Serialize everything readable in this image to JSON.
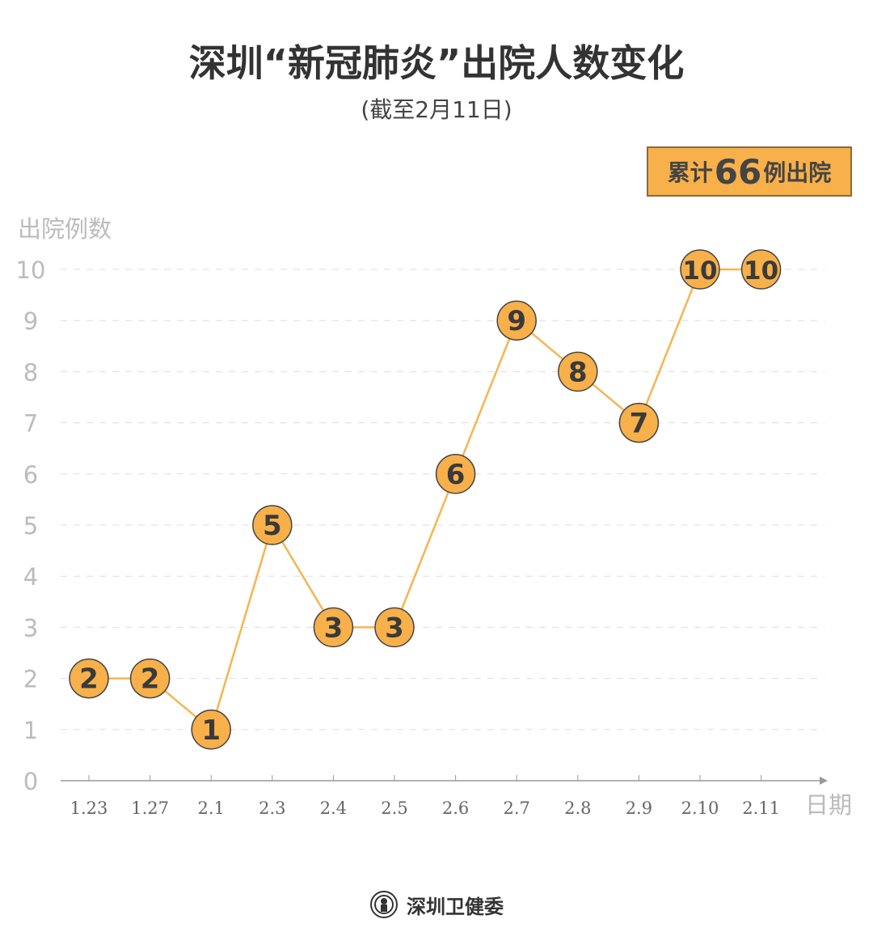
{
  "title": "深圳“新冠肺炎”出院人数变化",
  "subtitle": "(截至2月11日)",
  "badge": {
    "prefix": "累计",
    "number": "66",
    "suffix": "例出院"
  },
  "footer": {
    "source": "深圳卫健委",
    "logo": "shenzhen-health-commission-emblem"
  },
  "colors": {
    "marker_fill": "#f7b04a",
    "line": "#f5b550",
    "marker_stroke": "#444444",
    "grid": "#dddddd",
    "axis": "#999999"
  },
  "chart_data": {
    "type": "line",
    "title": "深圳“新冠肺炎”出院人数变化",
    "subtitle": "(截至2月11日)",
    "xlabel": "日期",
    "ylabel": "出院例数",
    "categories": [
      "1.23",
      "1.27",
      "2.1",
      "2.3",
      "2.4",
      "2.5",
      "2.6",
      "2.7",
      "2.8",
      "2.9",
      "2.10",
      "2.11"
    ],
    "values": [
      2,
      2,
      1,
      5,
      3,
      3,
      6,
      9,
      8,
      7,
      10,
      10
    ],
    "yticks": [
      0,
      1,
      2,
      3,
      4,
      5,
      6,
      7,
      8,
      9,
      10
    ],
    "ylim": [
      0,
      10
    ],
    "grid": true,
    "data_labels": true
  }
}
